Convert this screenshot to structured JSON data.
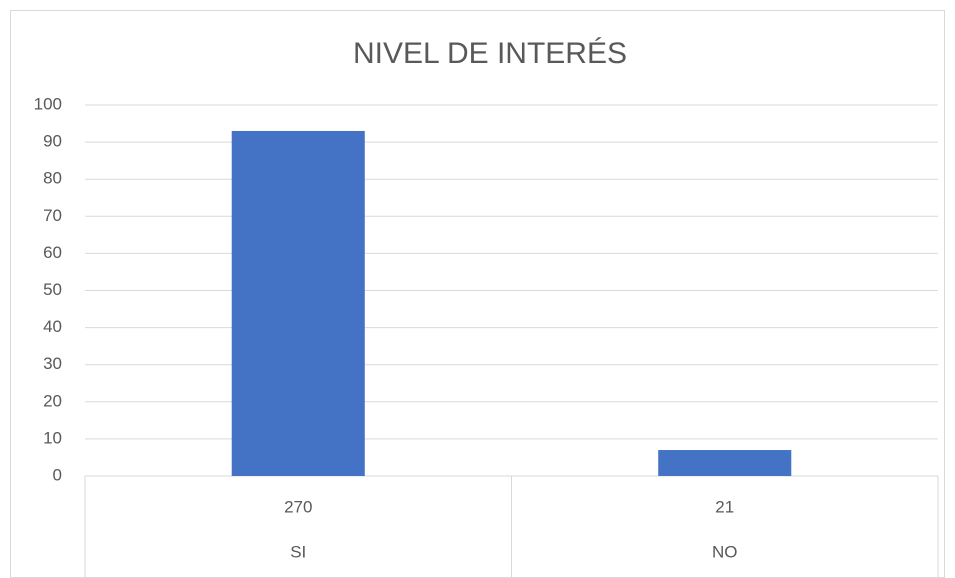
{
  "chart_data": {
    "type": "bar",
    "title": "NIVEL DE INTERÉS",
    "categories": [
      [
        "270",
        "SI"
      ],
      [
        "21",
        "NO"
      ]
    ],
    "values": [
      93,
      7
    ],
    "color": "#4472c4",
    "ylim": [
      0,
      100
    ],
    "yticks": [
      0,
      10,
      20,
      30,
      40,
      50,
      60,
      70,
      80,
      90,
      100
    ],
    "grid": true
  }
}
